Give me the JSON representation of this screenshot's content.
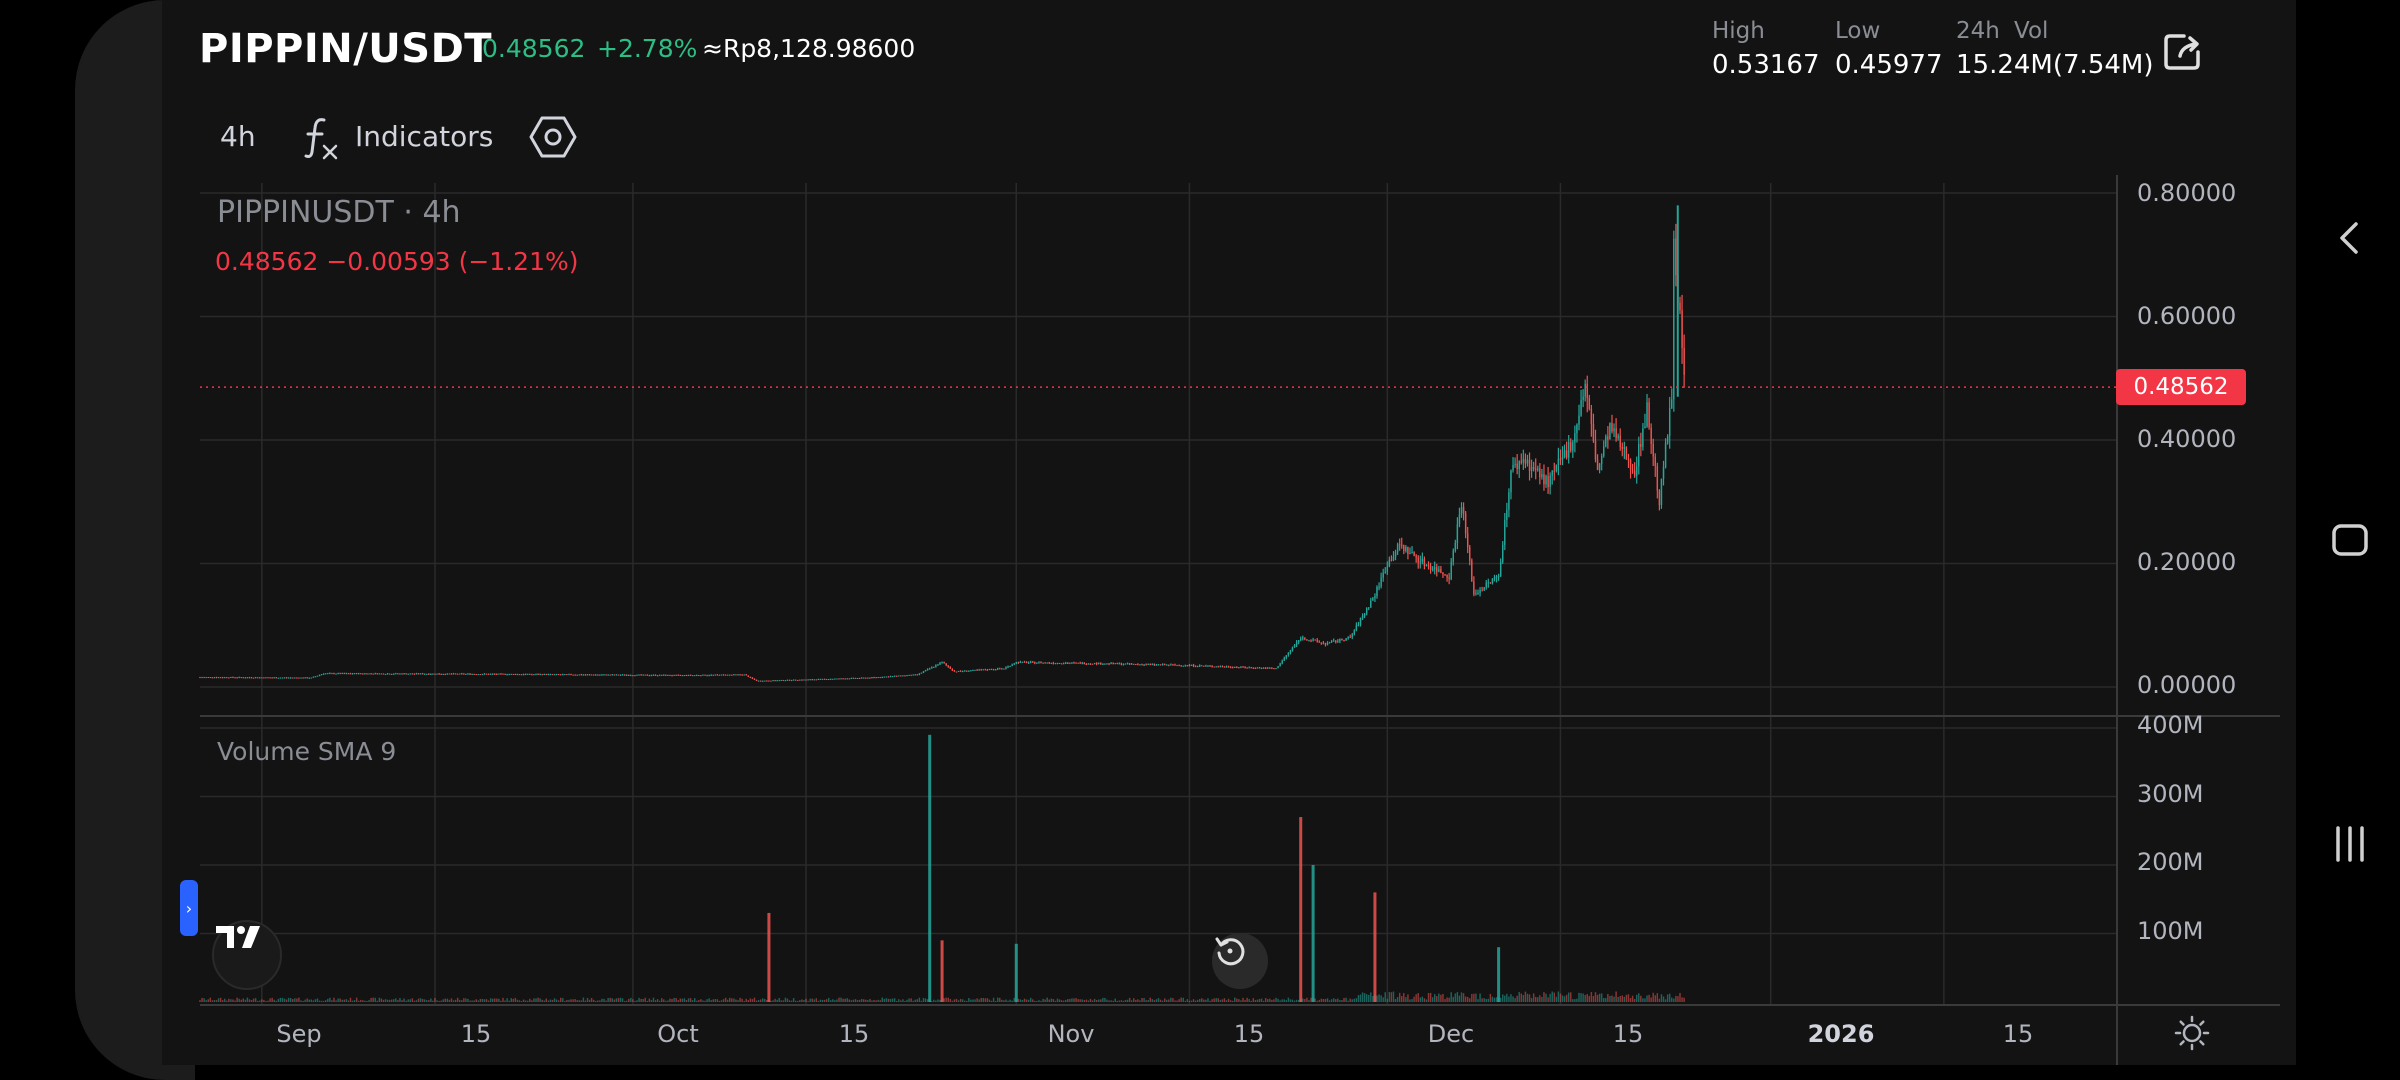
{
  "header": {
    "pair": "PIPPIN/USDT",
    "last_price": "0.48562",
    "change_pct": "+2.78%",
    "idr_price": "≈Rp8,128.98600",
    "high_label": "High",
    "high_value": "0.53167",
    "low_label": "Low",
    "low_value": "0.45977",
    "vol_label_a": "24h",
    "vol_label_b": "Vol",
    "vol_value": "15.24M(7.54M)"
  },
  "toolbar": {
    "interval": "4h",
    "indicators_label": "Indicators"
  },
  "chart": {
    "legend_title": "PIPPINUSDT · 4h",
    "legend_values": "0.48562  −0.00593 (−1.21%)",
    "current_price_tag": "0.48562",
    "volume_title": "Volume SMA 9",
    "price_ticks": [
      "0.80000",
      "0.60000",
      "0.40000",
      "0.20000",
      "0.00000"
    ],
    "volume_ticks": [
      "400M",
      "300M",
      "200M",
      "100M"
    ],
    "time_ticks": [
      "Sep",
      "15",
      "Oct",
      "15",
      "Nov",
      "15",
      "Dec",
      "15",
      "2026",
      "15"
    ],
    "colors": {
      "up": "#26a69a",
      "down": "#ef5350",
      "price_line": "#f23645"
    }
  },
  "chart_data": {
    "type": "candlestick",
    "symbol": "PIPPINUSDT",
    "interval": "4h",
    "last_close": 0.48562,
    "price_ylim": [
      0,
      0.8
    ],
    "volume_ylim": [
      0,
      400000000
    ],
    "price_path": [
      [
        "2025-08-27",
        0.016
      ],
      [
        "2025-09-05",
        0.015
      ],
      [
        "2025-09-06",
        0.022
      ],
      [
        "2025-09-20",
        0.021
      ],
      [
        "2025-10-05",
        0.019
      ],
      [
        "2025-10-10",
        0.02
      ],
      [
        "2025-10-11",
        0.01
      ],
      [
        "2025-10-15",
        0.012
      ],
      [
        "2025-10-20",
        0.015
      ],
      [
        "2025-10-24",
        0.02
      ],
      [
        "2025-10-26",
        0.04
      ],
      [
        "2025-10-27",
        0.025
      ],
      [
        "2025-10-31",
        0.03
      ],
      [
        "2025-11-01",
        0.04
      ],
      [
        "2025-11-08",
        0.038
      ],
      [
        "2025-11-15",
        0.035
      ],
      [
        "2025-11-22",
        0.03
      ],
      [
        "2025-11-24",
        0.08
      ],
      [
        "2025-11-26",
        0.07
      ],
      [
        "2025-11-28",
        0.08
      ],
      [
        "2025-11-30",
        0.15
      ],
      [
        "2025-12-01",
        0.2
      ],
      [
        "2025-12-02",
        0.23
      ],
      [
        "2025-12-04",
        0.2
      ],
      [
        "2025-12-06",
        0.18
      ],
      [
        "2025-12-07",
        0.3
      ],
      [
        "2025-12-08",
        0.15
      ],
      [
        "2025-12-10",
        0.18
      ],
      [
        "2025-12-11",
        0.35
      ],
      [
        "2025-12-12",
        0.37
      ],
      [
        "2025-12-14",
        0.33
      ],
      [
        "2025-12-16",
        0.4
      ],
      [
        "2025-12-17",
        0.49
      ],
      [
        "2025-12-18",
        0.35
      ],
      [
        "2025-12-19",
        0.42
      ],
      [
        "2025-12-21",
        0.35
      ],
      [
        "2025-12-22",
        0.45
      ],
      [
        "2025-12-23",
        0.3
      ],
      [
        "2025-12-24",
        0.47
      ],
      [
        "2025-12-24",
        0.78
      ],
      [
        "2025-12-25",
        0.5
      ],
      [
        "2025-12-25",
        0.486
      ]
    ],
    "volume_spikes": [
      [
        "2025-10-12",
        130000000
      ],
      [
        "2025-10-25",
        390000000
      ],
      [
        "2025-10-26",
        90000000
      ],
      [
        "2025-11-01",
        85000000
      ],
      [
        "2025-11-24",
        270000000
      ],
      [
        "2025-11-25",
        200000000
      ],
      [
        "2025-11-30",
        160000000
      ],
      [
        "2025-12-10",
        80000000
      ]
    ]
  }
}
